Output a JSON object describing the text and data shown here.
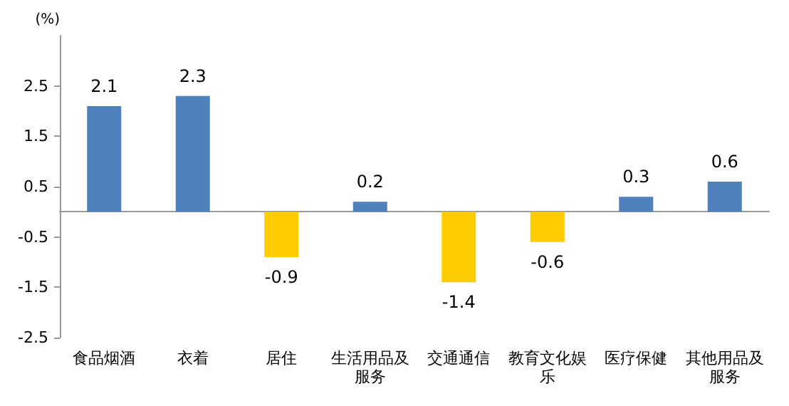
{
  "chart_data": {
    "type": "bar",
    "ylabel": "(%)",
    "categories": [
      "食品烟酒",
      "衣着",
      "居住",
      "生活用品及服务",
      "交通通信",
      "教育文化娱乐",
      "医疗保健",
      "其他用品及服务"
    ],
    "values": [
      2.1,
      2.3,
      -0.9,
      0.2,
      -1.4,
      -0.6,
      0.3,
      0.6
    ],
    "colors": [
      "#4f81bd",
      "#4f81bd",
      "#ffcc00",
      "#4f81bd",
      "#ffcc00",
      "#ffcc00",
      "#4f81bd",
      "#4f81bd"
    ],
    "ylim": [
      -2.5,
      3.5
    ],
    "yticks": [
      -2.5,
      -1.5,
      -0.5,
      0.5,
      1.5,
      2.5
    ],
    "data_labels": true,
    "grid": false
  }
}
